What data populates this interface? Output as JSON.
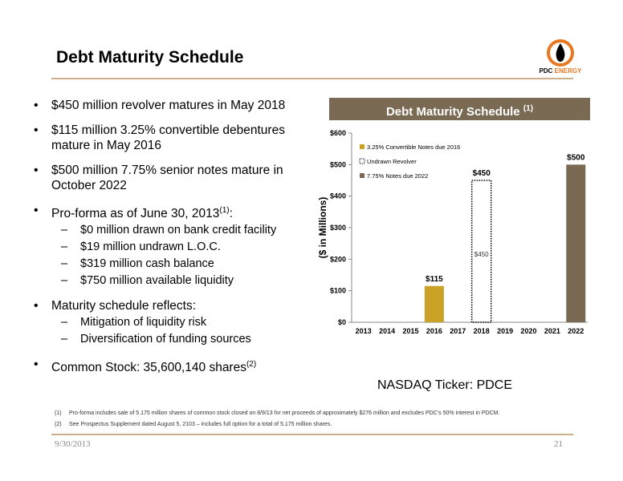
{
  "title": "Debt Maturity Schedule",
  "logo": {
    "prefix": "PDC",
    "suffix": "ENERGY"
  },
  "bullets": [
    {
      "text": "$450 million revolver matures in May 2018"
    },
    {
      "text": "$115 million 3.25% convertible debentures mature in May 2016"
    },
    {
      "text": "$500 million 7.75% senior notes mature in October 2022"
    },
    {
      "text": "Pro-forma as of June 30, 2013",
      "sup": "(1)",
      "suffix": ":",
      "sub": [
        "$0 million drawn on bank credit facility",
        "$19 million undrawn L.O.C.",
        "$319 million cash balance",
        "$750 million available liquidity"
      ]
    },
    {
      "text": "Maturity schedule reflects:",
      "sub": [
        "Mitigation of liquidity risk",
        "Diversification of funding sources"
      ]
    },
    {
      "text": "Common Stock: 35,600,140 shares",
      "sup": "(2)"
    }
  ],
  "chart_header": {
    "text": "Debt Maturity Schedule",
    "sup": "(1)"
  },
  "chart_data": {
    "type": "bar",
    "ylabel": "($ in Millions)",
    "ylim": [
      0,
      600
    ],
    "yticks": [
      "$0",
      "$100",
      "$200",
      "$300",
      "$400",
      "$500",
      "$600"
    ],
    "categories": [
      "2013",
      "2014",
      "2015",
      "2016",
      "2017",
      "2018",
      "2019",
      "2020",
      "2021",
      "2022"
    ],
    "series": [
      {
        "name": "3.25% Convertible Notes due 2016",
        "color": "#c9a227",
        "style": "solid",
        "values": [
          0,
          0,
          0,
          115,
          0,
          0,
          0,
          0,
          0,
          0
        ]
      },
      {
        "name": "Undrawn Revolver",
        "color": "#000000",
        "style": "dotted",
        "values": [
          0,
          0,
          0,
          0,
          0,
          450,
          0,
          0,
          0,
          0
        ]
      },
      {
        "name": "7.75% Notes due 2022",
        "color": "#7a6a53",
        "style": "solid",
        "values": [
          0,
          0,
          0,
          0,
          0,
          0,
          0,
          0,
          0,
          500
        ]
      }
    ],
    "data_labels": [
      {
        "category": "2016",
        "text": "$115",
        "value": 115
      },
      {
        "category": "2018",
        "text": "$450",
        "value": 450
      },
      {
        "category": "2022",
        "text": "$500",
        "value": 500
      }
    ],
    "inner_labels": [
      {
        "category": "2018",
        "text": "$450"
      }
    ],
    "legend_position": "top-left"
  },
  "ticker": "NASDAQ Ticker: PDCE",
  "footnotes": [
    {
      "num": "(1)",
      "text": "Pro-forma includes sale of 5.175 million shares of common stock closed on 8/9/13 for net proceeds of approximately $276 million and excludes PDC’s 50% interest in PDCM."
    },
    {
      "num": "(2)",
      "text": "See Prospectus Supplement dated August 5, 2103 – includes full option for a total of 5.175 million shares."
    }
  ],
  "footer": {
    "date": "9/30/2013",
    "page": "21"
  }
}
